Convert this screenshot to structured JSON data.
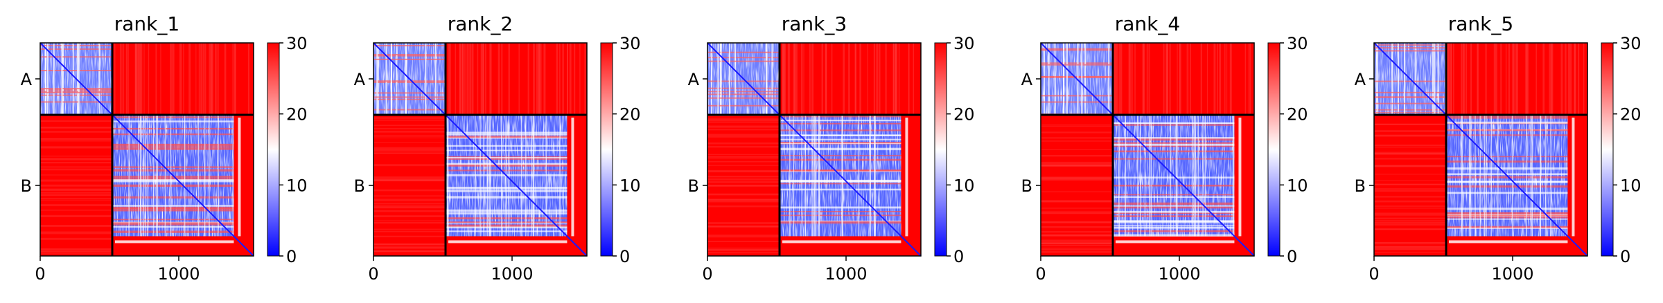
{
  "chart_data": [
    {
      "type": "heatmap",
      "title": "rank_1",
      "chains": [
        {
          "label": "A",
          "start": 0,
          "end": 520
        },
        {
          "label": "B",
          "start": 520,
          "end": 1540
        }
      ],
      "x_ticks": [
        0,
        1000
      ],
      "y_ticks": [
        "A",
        "B"
      ],
      "x_range": [
        0,
        1540
      ],
      "colorbar": {
        "min": 0,
        "max": 30,
        "ticks": [
          0,
          10,
          20,
          30
        ],
        "colors": [
          "#0000ff",
          "#ffffff",
          "#ff0000"
        ]
      }
    },
    {
      "type": "heatmap",
      "title": "rank_2",
      "chains": [
        {
          "label": "A",
          "start": 0,
          "end": 520
        },
        {
          "label": "B",
          "start": 520,
          "end": 1540
        }
      ],
      "x_ticks": [
        0,
        1000
      ],
      "y_ticks": [
        "A",
        "B"
      ],
      "x_range": [
        0,
        1540
      ],
      "colorbar": {
        "min": 0,
        "max": 30,
        "ticks": [
          0,
          10,
          20,
          30
        ],
        "colors": [
          "#0000ff",
          "#ffffff",
          "#ff0000"
        ]
      }
    },
    {
      "type": "heatmap",
      "title": "rank_3",
      "chains": [
        {
          "label": "A",
          "start": 0,
          "end": 520
        },
        {
          "label": "B",
          "start": 520,
          "end": 1540
        }
      ],
      "x_ticks": [
        0,
        1000
      ],
      "y_ticks": [
        "A",
        "B"
      ],
      "x_range": [
        0,
        1540
      ],
      "colorbar": {
        "min": 0,
        "max": 30,
        "ticks": [
          0,
          10,
          20,
          30
        ],
        "colors": [
          "#0000ff",
          "#ffffff",
          "#ff0000"
        ]
      }
    },
    {
      "type": "heatmap",
      "title": "rank_4",
      "chains": [
        {
          "label": "A",
          "start": 0,
          "end": 520
        },
        {
          "label": "B",
          "start": 520,
          "end": 1540
        }
      ],
      "x_ticks": [
        0,
        1000
      ],
      "y_ticks": [
        "A",
        "B"
      ],
      "x_range": [
        0,
        1540
      ],
      "colorbar": {
        "min": 0,
        "max": 30,
        "ticks": [
          0,
          10,
          20,
          30
        ],
        "colors": [
          "#0000ff",
          "#ffffff",
          "#ff0000"
        ]
      }
    },
    {
      "type": "heatmap",
      "title": "rank_5",
      "chains": [
        {
          "label": "A",
          "start": 0,
          "end": 520
        },
        {
          "label": "B",
          "start": 520,
          "end": 1540
        }
      ],
      "x_ticks": [
        0,
        1000
      ],
      "y_ticks": [
        "A",
        "B"
      ],
      "x_range": [
        0,
        1540
      ],
      "colorbar": {
        "min": 0,
        "max": 30,
        "ticks": [
          0,
          10,
          20,
          30
        ],
        "colors": [
          "#0000ff",
          "#ffffff",
          "#ff0000"
        ]
      }
    }
  ]
}
